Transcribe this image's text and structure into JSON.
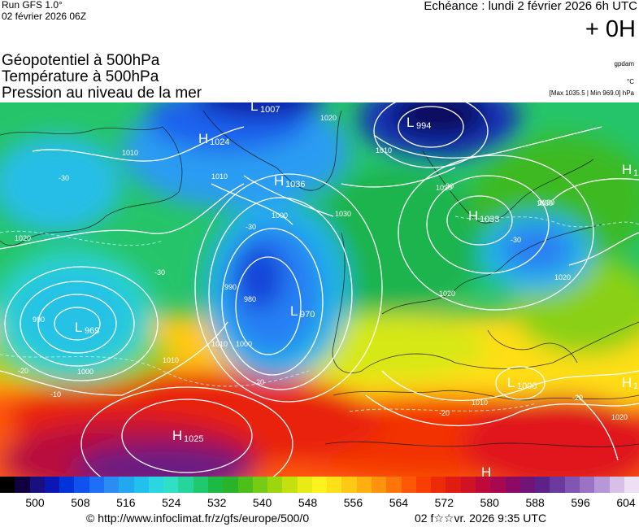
{
  "header": {
    "run": "Run GFS 1.0°",
    "run_date": "02 février 2026 06Z",
    "echeance": "Echéance : lundi 2 février 2026 6h UTC",
    "offset": "+ 0H"
  },
  "titles": {
    "line1": "Géopotentiel à 500hPa",
    "line2": "Température à 500hPa",
    "line3": "Pression au niveau de la mer"
  },
  "units": {
    "geopotential": "gpdam",
    "temperature": "°C",
    "pressure_range": "[Max 1035.5 | Min 969.0] hPa"
  },
  "pressure_centers": [
    {
      "type": "L",
      "value": "1007"
    },
    {
      "type": "L",
      "value": "994"
    },
    {
      "type": "H",
      "value": "1024"
    },
    {
      "type": "H",
      "value": "1036"
    },
    {
      "type": "H",
      "value": "1033"
    },
    {
      "type": "H",
      "value": "1"
    },
    {
      "type": "L",
      "value": "970"
    },
    {
      "type": "L",
      "value": "969"
    },
    {
      "type": "L",
      "value": "1000"
    },
    {
      "type": "H",
      "value": "1"
    },
    {
      "type": "H",
      "value": "1025"
    },
    {
      "type": "H",
      "value": ""
    }
  ],
  "isobar_labels": [
    "1020",
    "1010",
    "1030",
    "1000",
    "990",
    "980",
    "1010",
    "1000",
    "1020",
    "1010",
    "1020",
    "1030",
    "1020",
    "1010",
    "990",
    "1000",
    "1010",
    "1020",
    "1030",
    "1010",
    "1020"
  ],
  "isotherm_labels": [
    "-30",
    "-30",
    "-30",
    "-30",
    "-30",
    "-20",
    "-20",
    "-20",
    "-10",
    "-20"
  ],
  "colorbar": {
    "ticks": [
      "500",
      "508",
      "516",
      "524",
      "532",
      "540",
      "548",
      "556",
      "564",
      "572",
      "580",
      "588",
      "596",
      "604"
    ],
    "colors": [
      "#000000",
      "#11003f",
      "#1a0f7f",
      "#0a17b5",
      "#0033d9",
      "#0f52ef",
      "#1f6ff6",
      "#2b8cf4",
      "#23a7ef",
      "#22c1ec",
      "#2bd6e3",
      "#2fdfc6",
      "#26d59b",
      "#20c96f",
      "#1cb944",
      "#2ab22b",
      "#4dbf1a",
      "#76cc14",
      "#9bd60f",
      "#c2e10e",
      "#e8ec14",
      "#fff21e",
      "#ffe018",
      "#ffc813",
      "#ffb010",
      "#ff930d",
      "#ff7509",
      "#ff5706",
      "#f93e05",
      "#ee2b08",
      "#e01c12",
      "#cf1225",
      "#be0a3a",
      "#a70850",
      "#8c0a64",
      "#711478",
      "#5d218a",
      "#6a3aa0",
      "#8055b4",
      "#9a73c6",
      "#b897d7",
      "#d7bfe8",
      "#eee0f4"
    ]
  },
  "footer": {
    "url": "© http://www.infoclimat.fr/z/gfs/europe/500/0",
    "date": "02 f☆☆vr. 2026  9:35 UTC"
  }
}
